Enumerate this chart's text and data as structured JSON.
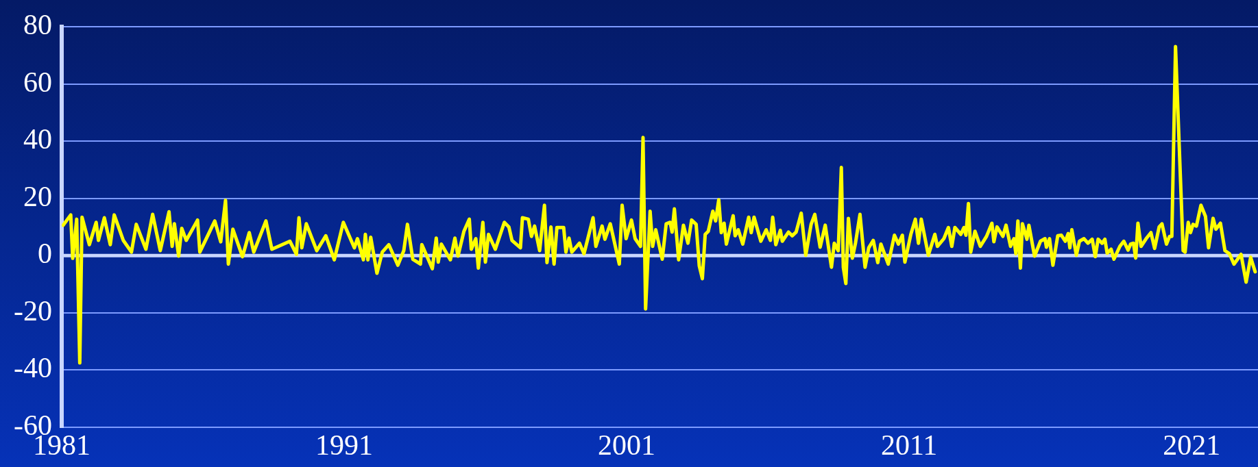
{
  "chart_data": {
    "type": "line",
    "xlim": [
      1981,
      2023.35
    ],
    "xticks": [
      1981,
      1991,
      2001,
      2011,
      2021
    ],
    "ylim": [
      -60,
      80
    ],
    "yticks": [
      -60,
      -40,
      -20,
      0,
      20,
      40,
      60,
      80
    ],
    "grid": "y",
    "legend": false,
    "ref_lines": [
      {
        "axis": "y",
        "value": 0,
        "color": "#c9d6ff"
      }
    ],
    "marker": "none",
    "line_style": "solid",
    "series": [
      {
        "color": "#ffff00",
        "x": [
          1981.05,
          1981.32,
          1981.39,
          1981.53,
          1981.64,
          1981.72,
          1981.98,
          1982.22,
          1982.3,
          1982.51,
          1982.72,
          1982.86,
          1983.18,
          1983.47,
          1983.64,
          1983.98,
          1984.22,
          1984.49,
          1984.8,
          1984.91,
          1984.99,
          1985.14,
          1985.25,
          1985.41,
          1985.81,
          1985.89,
          1986.42,
          1986.63,
          1986.8,
          1986.9,
          1987.06,
          1987.4,
          1987.64,
          1987.8,
          1988.23,
          1988.44,
          1989.08,
          1989.31,
          1989.4,
          1989.5,
          1989.66,
          1990.03,
          1990.35,
          1990.65,
          1990.97,
          1991.36,
          1991.47,
          1991.68,
          1991.75,
          1991.84,
          1991.94,
          1992.16,
          1992.35,
          1992.58,
          1992.9,
          1993.11,
          1993.24,
          1993.43,
          1993.7,
          1993.75,
          1994.12,
          1994.26,
          1994.33,
          1994.44,
          1994.76,
          1994.92,
          1995.03,
          1995.24,
          1995.43,
          1995.5,
          1995.66,
          1995.75,
          1995.91,
          1996.0,
          1996.11,
          1996.35,
          1996.67,
          1996.83,
          1996.94,
          1997.24,
          1997.31,
          1997.52,
          1997.63,
          1997.74,
          1997.92,
          1998.09,
          1998.18,
          1998.32,
          1998.43,
          1998.53,
          1998.77,
          1998.85,
          1998.96,
          1999.06,
          1999.33,
          1999.49,
          1999.81,
          1999.91,
          2000.13,
          2000.23,
          2000.42,
          2000.74,
          2000.84,
          2000.98,
          2001.17,
          2001.3,
          2001.49,
          2001.58,
          2001.67,
          2001.83,
          2001.92,
          2002.03,
          2002.26,
          2002.4,
          2002.54,
          2002.61,
          2002.69,
          2002.84,
          2003.01,
          2003.17,
          2003.3,
          2003.46,
          2003.57,
          2003.68,
          2003.78,
          2003.89,
          2004.05,
          2004.15,
          2004.26,
          2004.35,
          2004.45,
          2004.53,
          2004.77,
          2004.84,
          2004.95,
          2005.11,
          2005.32,
          2005.41,
          2005.51,
          2005.75,
          2005.94,
          2006.09,
          2006.17,
          2006.28,
          2006.44,
          2006.51,
          2006.73,
          2006.86,
          2007.0,
          2007.18,
          2007.34,
          2007.53,
          2007.66,
          2007.85,
          2008.03,
          2008.25,
          2008.35,
          2008.49,
          2008.6,
          2008.67,
          2008.76,
          2008.85,
          2008.99,
          2009.1,
          2009.26,
          2009.44,
          2009.57,
          2009.73,
          2009.89,
          2010.0,
          2010.26,
          2010.48,
          2010.62,
          2010.76,
          2010.85,
          2011.06,
          2011.22,
          2011.33,
          2011.43,
          2011.68,
          2011.91,
          2012.0,
          2012.23,
          2012.39,
          2012.51,
          2012.62,
          2012.83,
          2012.94,
          2013.01,
          2013.1,
          2013.18,
          2013.33,
          2013.52,
          2013.74,
          2013.93,
          2014.0,
          2014.11,
          2014.32,
          2014.43,
          2014.59,
          2014.71,
          2014.78,
          2014.85,
          2014.94,
          2015.01,
          2015.17,
          2015.24,
          2015.44,
          2015.65,
          2015.81,
          2015.86,
          2015.97,
          2016.09,
          2016.26,
          2016.39,
          2016.53,
          2016.63,
          2016.69,
          2016.76,
          2016.92,
          2017.03,
          2017.19,
          2017.33,
          2017.48,
          2017.59,
          2017.69,
          2017.83,
          2017.93,
          2018.01,
          2018.15,
          2018.25,
          2018.46,
          2018.6,
          2018.75,
          2018.84,
          2018.94,
          2019.02,
          2019.1,
          2019.21,
          2019.39,
          2019.56,
          2019.69,
          2019.85,
          2019.95,
          2020.11,
          2020.22,
          2020.3,
          2020.43,
          2020.64,
          2020.7,
          2020.77,
          2020.88,
          2020.96,
          2021.05,
          2021.17,
          2021.33,
          2021.49,
          2021.6,
          2021.76,
          2021.86,
          2022.02,
          2022.18,
          2022.34,
          2022.5,
          2022.75,
          2022.93,
          2023.09,
          2023.25
        ],
        "values": [
          10.6,
          14.2,
          -1,
          12.7,
          -37.6,
          13.4,
          3.8,
          11.6,
          5.3,
          13.2,
          3.8,
          14.2,
          5.3,
          1.2,
          10.9,
          2.2,
          14.4,
          1.7,
          15.3,
          3.2,
          11.1,
          -0.2,
          9.5,
          5.3,
          12.4,
          1.2,
          12.1,
          4.8,
          19.3,
          -3,
          9.2,
          -0.4,
          8,
          1.2,
          12.1,
          2.2,
          5,
          0.4,
          13.2,
          2.7,
          11.1,
          1.7,
          6.9,
          -1.5,
          11.6,
          2.7,
          5.9,
          -1.5,
          7.4,
          -1.5,
          6.4,
          -6.2,
          1.2,
          3.8,
          -3.4,
          1.7,
          10.9,
          -1.3,
          -3,
          3.8,
          -4.6,
          6.1,
          -2.3,
          4,
          -1.5,
          6.1,
          -0.2,
          8.5,
          12.7,
          2.2,
          5.9,
          -4.4,
          11.6,
          -2.3,
          7.4,
          2.2,
          11.6,
          10,
          5.3,
          2.7,
          13.2,
          12.7,
          6.7,
          10.3,
          1.7,
          17.6,
          -2.5,
          10,
          -3,
          9.8,
          9.8,
          1.2,
          6.1,
          1.2,
          4.3,
          0.6,
          13.2,
          3.2,
          10.3,
          5.7,
          11.1,
          -3,
          17.6,
          5.9,
          12.4,
          5.9,
          3.2,
          41.3,
          -18.7,
          15.5,
          3.2,
          9,
          -1.3,
          11.1,
          11.6,
          8.2,
          16.3,
          -1.5,
          10.6,
          4.3,
          12.4,
          10.9,
          -3.6,
          -8.1,
          7.4,
          8.5,
          15.5,
          12.1,
          19.5,
          8,
          11.3,
          4,
          13.9,
          6.9,
          9,
          4,
          13.4,
          8,
          13.4,
          5,
          9,
          5.3,
          13.4,
          3.8,
          8.8,
          5,
          8.2,
          6.9,
          8.2,
          14.8,
          0.1,
          10.9,
          14.4,
          2.9,
          10.6,
          -4.1,
          4.3,
          1.7,
          30.8,
          -4.1,
          -9.8,
          13,
          -0.9,
          4.3,
          14.4,
          -4.1,
          2.7,
          5.3,
          -2.5,
          4,
          -3,
          7.1,
          4,
          7.1,
          -2.3,
          7.4,
          12.7,
          4.3,
          12.7,
          0.1,
          7.4,
          3.2,
          5.9,
          9.8,
          3.2,
          9.8,
          7.4,
          9.8,
          7.1,
          18.2,
          1.2,
          8.5,
          3.2,
          6.7,
          11.3,
          4.8,
          10,
          6.7,
          10.6,
          3.2,
          5.9,
          0.6,
          12.1,
          -4.4,
          11.1,
          5.7,
          10.6,
          -0.2,
          5,
          5.9,
          2.9,
          5.9,
          -3.4,
          6.9,
          7.1,
          5,
          7.7,
          2.7,
          9,
          0.1,
          5,
          5.9,
          4.3,
          5.7,
          -0.4,
          5.7,
          4.3,
          5.7,
          0.8,
          2.2,
          -1.3,
          3.2,
          5,
          1.9,
          4,
          4.3,
          -0.9,
          11.3,
          3.2,
          5.9,
          8,
          2.5,
          10,
          11.1,
          4,
          6.7,
          6.7,
          73.1,
          17.6,
          1.7,
          1.2,
          11.6,
          8,
          10.9,
          10.3,
          17.6,
          13.7,
          2.7,
          13,
          9.2,
          11.3,
          1.7,
          0.6,
          -3,
          0.4,
          -9.3,
          -0.6,
          -5.7
        ]
      }
    ]
  }
}
